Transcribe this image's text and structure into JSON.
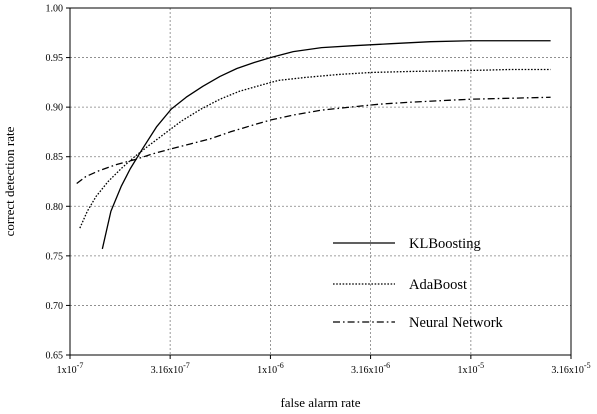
{
  "chart_data": {
    "type": "line",
    "xlabel": "false alarm rate",
    "ylabel": "correct detection rate",
    "x_scale": "log",
    "xlim": [
      1e-07,
      3.16e-05
    ],
    "ylim": [
      0.65,
      1.0
    ],
    "grid": true,
    "legend_position": "lower-right",
    "x_ticks": [
      {
        "value": 1e-07,
        "mantissa": "1x10",
        "exp": "-7"
      },
      {
        "value": 3.16e-07,
        "mantissa": "3.16x10",
        "exp": "-7"
      },
      {
        "value": 1e-06,
        "mantissa": "1x10",
        "exp": "-6"
      },
      {
        "value": 3.16e-06,
        "mantissa": "3.16x10",
        "exp": "-6"
      },
      {
        "value": 1e-05,
        "mantissa": "1x10",
        "exp": "-5"
      },
      {
        "value": 3.16e-05,
        "mantissa": "3.16x10",
        "exp": "-5"
      }
    ],
    "y_ticks": [
      "0.65",
      "0.70",
      "0.75",
      "0.80",
      "0.85",
      "0.90",
      "0.95",
      "1.00"
    ],
    "series": [
      {
        "name": "KLBoosting",
        "style": "solid",
        "x": [
          1.45e-07,
          1.6e-07,
          1.8e-07,
          2e-07,
          2.3e-07,
          2.7e-07,
          3.2e-07,
          3.8e-07,
          4.6e-07,
          5.6e-07,
          6.8e-07,
          8.3e-07,
          1e-06,
          1.3e-06,
          1.8e-06,
          2.6e-06,
          4e-06,
          6.3e-06,
          1e-05,
          1.6e-05,
          2.5e-05
        ],
        "y": [
          0.757,
          0.795,
          0.82,
          0.838,
          0.858,
          0.88,
          0.898,
          0.91,
          0.921,
          0.931,
          0.939,
          0.945,
          0.95,
          0.956,
          0.96,
          0.962,
          0.964,
          0.966,
          0.967,
          0.967,
          0.967
        ]
      },
      {
        "name": "AdaBoost",
        "style": "dotted",
        "x": [
          1.12e-07,
          1.22e-07,
          1.35e-07,
          1.55e-07,
          1.8e-07,
          2.1e-07,
          2.5e-07,
          3e-07,
          3.6e-07,
          4.5e-07,
          5.6e-07,
          7e-07,
          8.9e-07,
          1.1e-06,
          1.5e-06,
          2.2e-06,
          3.2e-06,
          5e-06,
          1e-05,
          1.6e-05,
          2.5e-05
        ],
        "y": [
          0.778,
          0.795,
          0.81,
          0.825,
          0.838,
          0.85,
          0.862,
          0.874,
          0.886,
          0.898,
          0.908,
          0.916,
          0.922,
          0.927,
          0.93,
          0.933,
          0.935,
          0.936,
          0.937,
          0.938,
          0.938
        ]
      },
      {
        "name": "Neural Network",
        "style": "dashdot",
        "x": [
          1.08e-07,
          1.2e-07,
          1.4e-07,
          1.7e-07,
          2.1e-07,
          2.6e-07,
          3.2e-07,
          4e-07,
          5e-07,
          6.3e-07,
          7.9e-07,
          1e-06,
          1.3e-06,
          1.8e-06,
          2.5e-06,
          3.5e-06,
          5e-06,
          7.9e-06,
          1e-05,
          1.6e-05,
          2.5e-05
        ],
        "y": [
          0.823,
          0.83,
          0.836,
          0.842,
          0.847,
          0.853,
          0.858,
          0.863,
          0.868,
          0.875,
          0.881,
          0.887,
          0.892,
          0.897,
          0.9,
          0.903,
          0.905,
          0.907,
          0.908,
          0.909,
          0.91
        ]
      }
    ]
  }
}
